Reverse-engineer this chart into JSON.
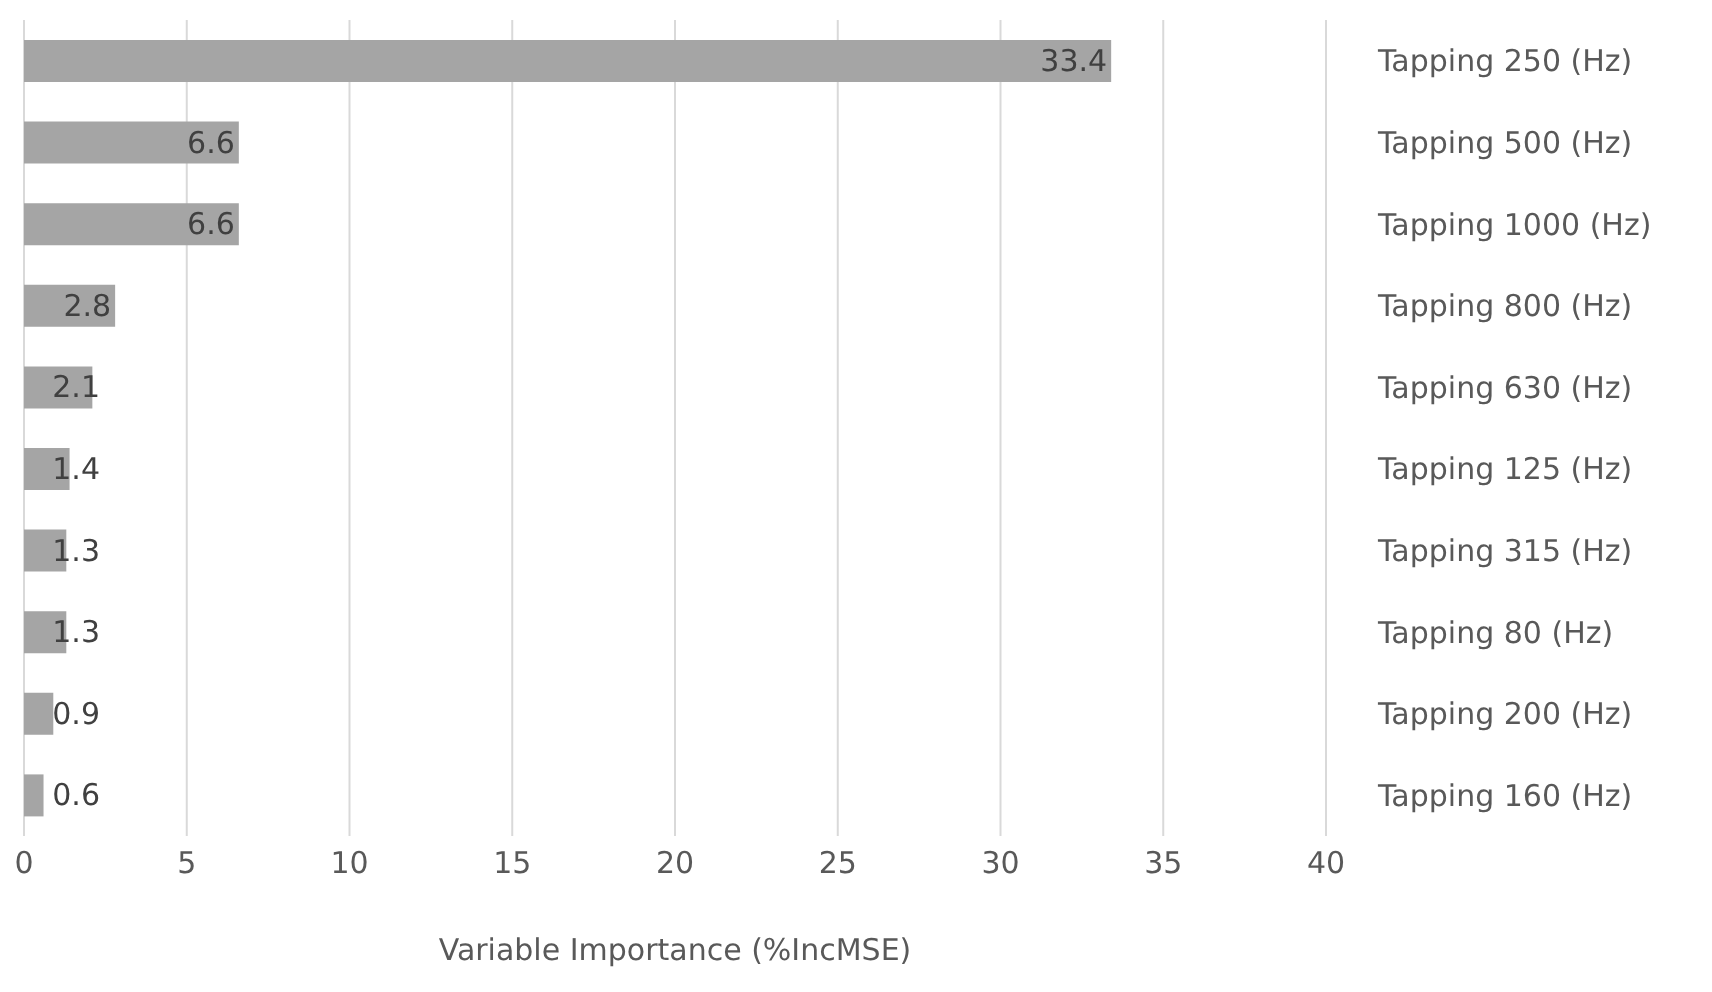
{
  "chart_data": {
    "type": "bar",
    "orientation": "horizontal",
    "xlabel": "Variable Importance (%IncMSE)",
    "categories": [
      "Tapping 250 (Hz)",
      "Tapping 500 (Hz)",
      "Tapping 1000 (Hz)",
      "Tapping 800 (Hz)",
      "Tapping 630 (Hz)",
      "Tapping 125 (Hz)",
      "Tapping 315 (Hz)",
      "Tapping 80 (Hz)",
      "Tapping 200 (Hz)",
      "Tapping 160 (Hz)"
    ],
    "values": [
      33.4,
      6.6,
      6.6,
      2.8,
      2.1,
      1.4,
      1.3,
      1.3,
      0.9,
      0.6
    ],
    "color": "#a5a5a5",
    "xlim": [
      0,
      40
    ],
    "xticks": [
      0,
      5,
      10,
      15,
      20,
      25,
      30,
      35,
      40
    ],
    "grid": "x",
    "data_labels": true
  }
}
